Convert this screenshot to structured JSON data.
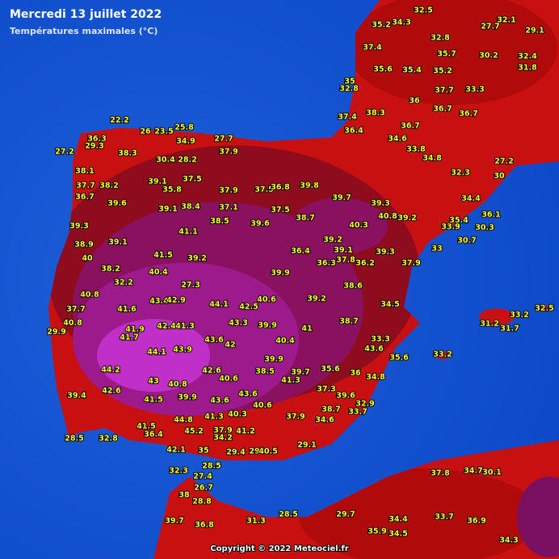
{
  "header": {
    "title": "Mercredi 13 juillet 2022",
    "subtitle": "Températures maximales (°C)"
  },
  "footer": {
    "copyright": "Copyright © 2022 Meteociel.fr"
  },
  "stations": [
    "22.2",
    "36.3",
    "29.3",
    "27.2",
    "38.3",
    "26",
    "23.5",
    "25.8",
    "34.9",
    "27.7",
    "37.9",
    "30.4",
    "28.2",
    "38.1",
    "37.7",
    "38.2",
    "36.7",
    "39.6",
    "39.1",
    "37.5",
    "35.8",
    "37.9",
    "37.5",
    "36.8",
    "39.8",
    "39.7",
    "39.3",
    "39.3",
    "39.1",
    "39.1",
    "38.4",
    "37.1",
    "38.5",
    "39.6",
    "37.5",
    "38.7",
    "40.3",
    "40.8",
    "39.2",
    "38.9",
    "40",
    "41.1",
    "41.5",
    "39.2",
    "39.2",
    "36.4",
    "36.3",
    "39.1",
    "37.8",
    "36.2",
    "39.3",
    "37.9",
    "38.2",
    "32.2",
    "40.4",
    "27.3",
    "39.9",
    "38.6",
    "40.8",
    "43.4",
    "42.9",
    "44.1",
    "42.5",
    "40.6",
    "39.2",
    "34.5",
    "37.7",
    "41.6",
    "40.8",
    "42.4",
    "41.3",
    "43.3",
    "39.9",
    "29.9",
    "41.9",
    "43.6",
    "42",
    "40.4",
    "41",
    "38.7",
    "33.3",
    "43.6",
    "35.6",
    "41.7",
    "44.1",
    "43.9",
    "39.9",
    "44.2",
    "42.6",
    "38.5",
    "39.7",
    "35.6",
    "43",
    "40.8",
    "40.6",
    "41.3",
    "36",
    "34.8",
    "42.6",
    "39.4",
    "41.5",
    "39.9",
    "43.6",
    "43.6",
    "37.3",
    "39.6",
    "32.9",
    "38.7",
    "40.6",
    "44.8",
    "41.5",
    "36.4",
    "45.2",
    "41.3",
    "40.3",
    "37.9",
    "34.6",
    "33.7",
    "37.9",
    "34.2",
    "41.2",
    "28.5",
    "32.8",
    "42.1",
    "35",
    "29.4",
    "29",
    "40.5",
    "29.1",
    "32.3",
    "28.5",
    "27.4",
    "26.7",
    "38",
    "28.8",
    "39.7",
    "36.8",
    "31.3",
    "28.5",
    "29.7",
    "34.4",
    "33.7",
    "36.9",
    "37.8",
    "34.7",
    "30.1",
    "35.9",
    "34.5",
    "34.3",
    "33.2",
    "31.2",
    "31.7",
    "33.2",
    "32.5",
    "37.4",
    "35.2",
    "34.3",
    "32.5",
    "32.8",
    "35.7",
    "30.2",
    "32.1",
    "29.1",
    "27.7",
    "32.4",
    "31.8",
    "38.3",
    "36",
    "36.7",
    "36.7",
    "36.7",
    "34.6",
    "33.8",
    "37.4",
    "36.4",
    "34.8",
    "32.3",
    "35.4",
    "35.2",
    "35.6",
    "35",
    "32.8",
    "33.3",
    "37.7",
    "27.2",
    "30",
    "34.4",
    "36.1",
    "35.4",
    "33.9",
    "30.3",
    "30.7",
    "33"
  ]
}
